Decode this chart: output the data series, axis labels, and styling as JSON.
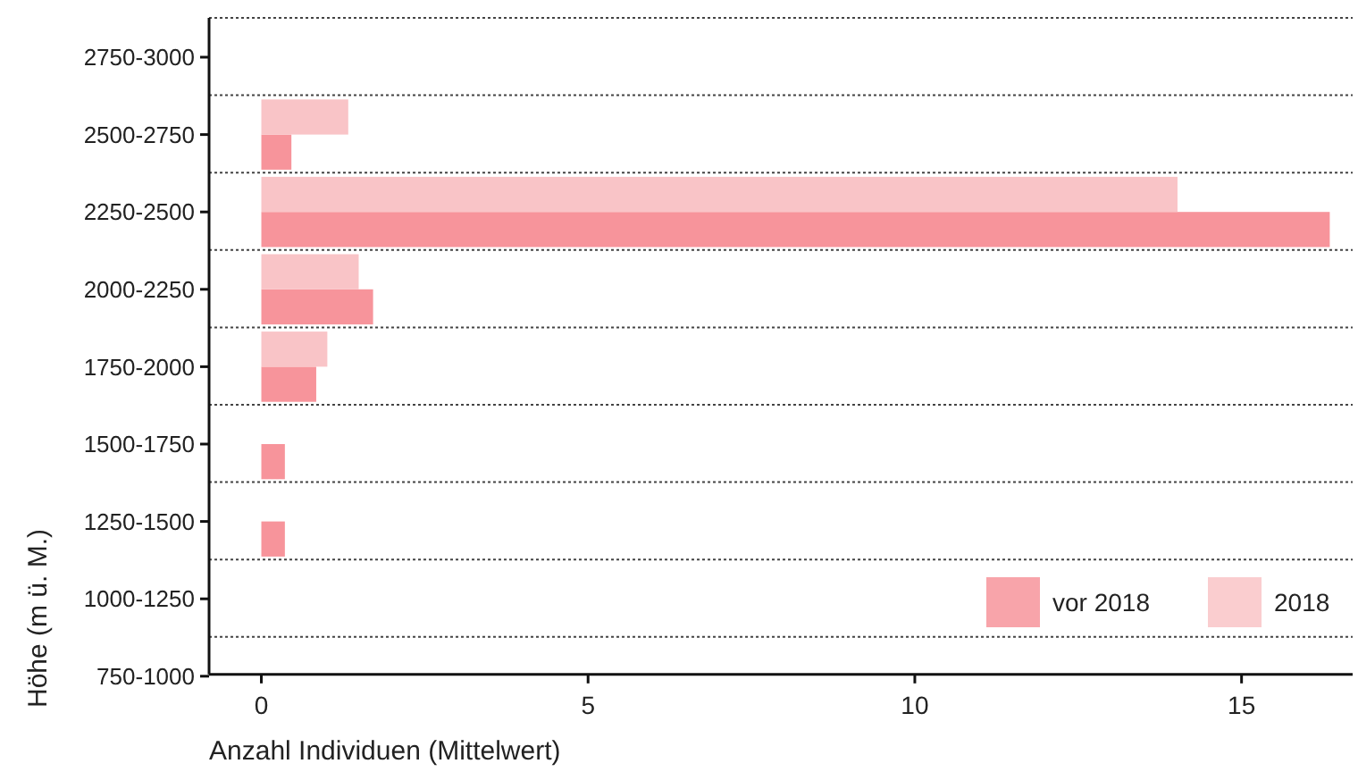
{
  "chart_data": {
    "type": "bar",
    "orientation": "horizontal",
    "xlabel": "Anzahl Individuen (Mittelwert)",
    "ylabel": "Höhe (m ü. M.)",
    "categories": [
      "2750-3000",
      "2500-2750",
      "2250-2500",
      "2000-2250",
      "1750-2000",
      "1500-1750",
      "1250-1500",
      "1000-1250",
      "750-1000"
    ],
    "series": [
      {
        "name": "vor 2018",
        "color": "#f7949b",
        "values": [
          null,
          0.46,
          16.35,
          1.71,
          0.84,
          0.36,
          0.36,
          null,
          null
        ]
      },
      {
        "name": "2018",
        "color": "#f9c4c7",
        "values": [
          null,
          1.33,
          14.02,
          1.49,
          1.01,
          null,
          null,
          null,
          null
        ]
      }
    ],
    "xlim": [
      -0.8,
      16.7
    ],
    "xticks": [
      0,
      5,
      10,
      15
    ],
    "grid": "y",
    "legend": "bottom right"
  }
}
